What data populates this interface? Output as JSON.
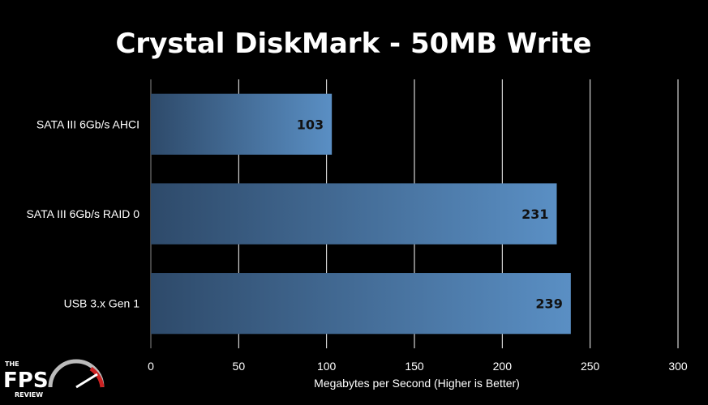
{
  "chart_data": {
    "type": "bar",
    "orientation": "horizontal",
    "title": "Crystal DiskMark - 50MB Write",
    "xlabel": "Megabytes per Second (Higher is Better)",
    "ylabel": "",
    "categories": [
      "SATA III 6Gb/s AHCI",
      "SATA III 6Gb/s RAID 0",
      "USB 3.x Gen 1"
    ],
    "values": [
      103,
      231,
      239
    ],
    "xlim": [
      0,
      300
    ],
    "xticks": [
      0,
      50,
      100,
      150,
      200,
      250,
      300
    ],
    "grid": "vertical",
    "legend": "none",
    "colors": {
      "background": "#000000",
      "bar_dark": "#2e4a6a",
      "bar_light": "#5a8fc4",
      "grid": "#ffffff",
      "text": "#ffffff",
      "data_label": "#111111"
    }
  },
  "logo": {
    "line1": "THE",
    "line2": "FPS",
    "line3": "REVIEW"
  }
}
